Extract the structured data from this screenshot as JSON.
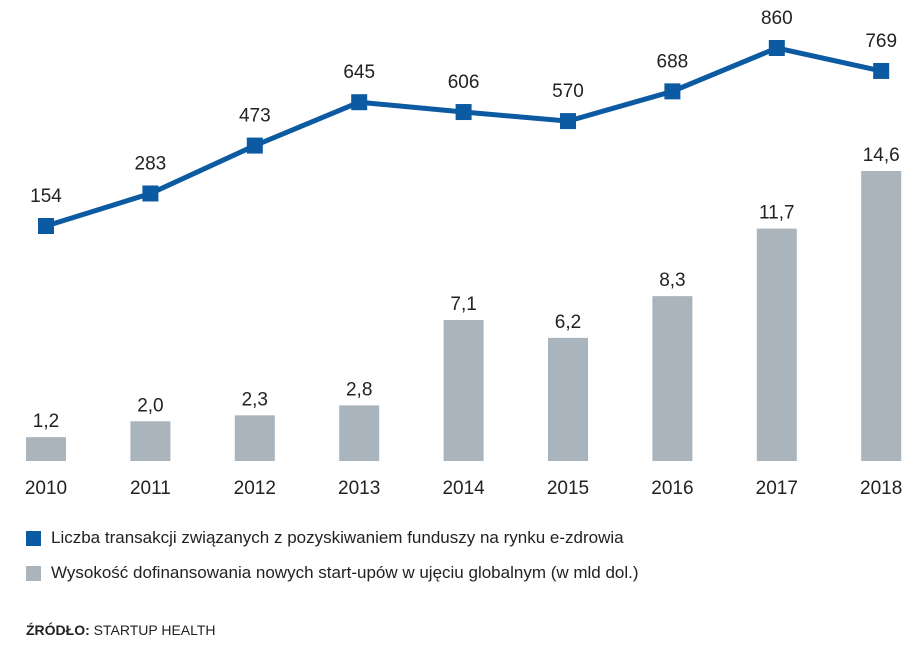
{
  "chart_data": {
    "type": "bar+line",
    "categories": [
      "2010",
      "2011",
      "2012",
      "2013",
      "2014",
      "2015",
      "2016",
      "2017",
      "2018"
    ],
    "series": [
      {
        "name": "Liczba transakcji związanych z pozyskiwaniem funduszy na rynku e-zdrowia",
        "type": "line",
        "color": "#0b5aa2",
        "values": [
          154,
          283,
          473,
          645,
          606,
          570,
          688,
          860,
          769
        ],
        "labels": [
          "154",
          "283",
          "473",
          "645",
          "606",
          "570",
          "688",
          "860",
          "769"
        ]
      },
      {
        "name": "Wysokość dofinansowania nowych start-upów w ujęciu globalnym (w mld dol.)",
        "type": "bar",
        "color": "#aab4bc",
        "values": [
          1.2,
          2.0,
          2.3,
          2.8,
          7.1,
          6.2,
          8.3,
          11.7,
          14.6
        ],
        "labels": [
          "1,2",
          "2,0",
          "2,3",
          "2,8",
          "7,1",
          "6,2",
          "8,3",
          "11,7",
          "14,6"
        ]
      }
    ],
    "legend": "bottom-left"
  },
  "source": {
    "label": "ŹRÓDŁO:",
    "value": " STARTUP HEALTH"
  }
}
